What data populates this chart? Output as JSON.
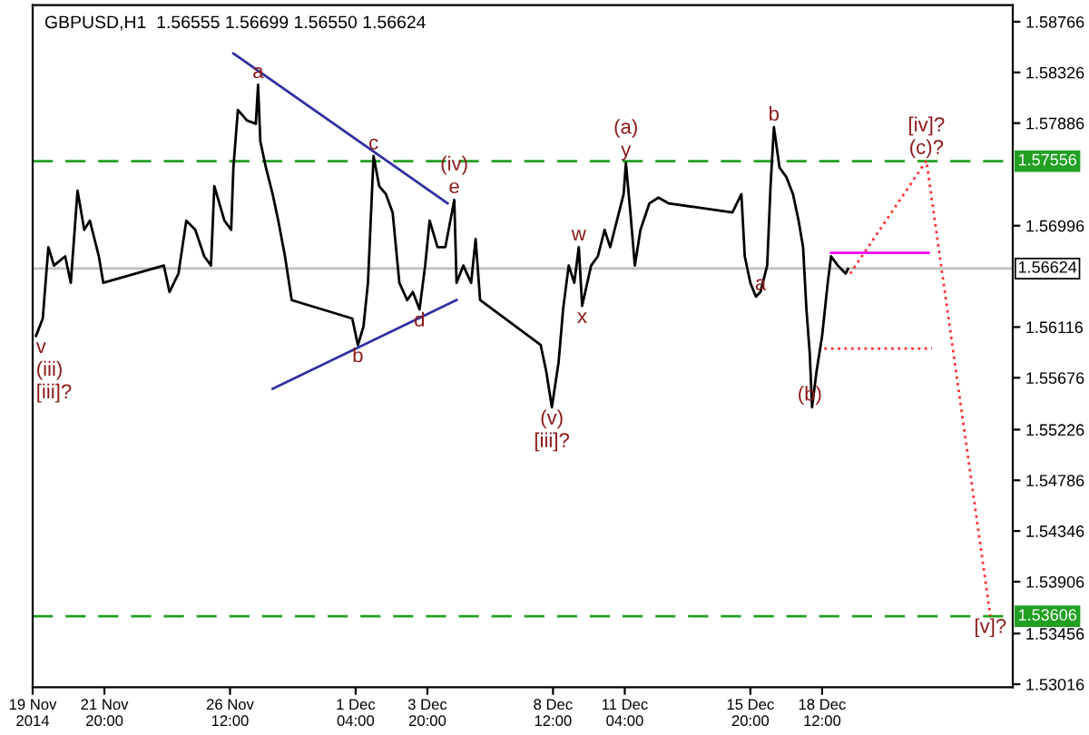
{
  "chart_data": {
    "type": "line",
    "title": "GBPUSD,H1  1.56555 1.56699 1.56550 1.56624",
    "xlim": [
      "2014-11-19T04:00",
      "2014-12-25T14:00"
    ],
    "ylim": [
      1.5299,
      1.5891
    ],
    "xticks": [
      {
        "value": "2014-11-19T04:00",
        "label": "19 Nov 2014"
      },
      {
        "value": "2014-11-21T20:00",
        "label": "21 Nov 20:00"
      },
      {
        "value": "2014-11-26T12:00",
        "label": "26 Nov 12:00"
      },
      {
        "value": "2014-12-01T04:00",
        "label": "1 Dec 04:00"
      },
      {
        "value": "2014-12-03T20:00",
        "label": "3 Dec 20:00"
      },
      {
        "value": "2014-12-08T12:00",
        "label": "8 Dec 12:00"
      },
      {
        "value": "2014-12-11T04:00",
        "label": "11 Dec 04:00"
      },
      {
        "value": "2014-12-15T20:00",
        "label": "15 Dec 20:00"
      },
      {
        "value": "2014-12-18T12:00",
        "label": "18 Dec 12:00"
      }
    ],
    "yticks": [
      1.58766,
      1.58326,
      1.57886,
      1.56996,
      1.56116,
      1.55676,
      1.55226,
      1.54786,
      1.54346,
      1.53906,
      1.53456,
      1.53016
    ],
    "grid": false,
    "legend": false,
    "series": [
      {
        "color": "#000000",
        "line_style": "solid",
        "x": [
          "2014-11-19T07:00",
          "2014-11-19T13:00",
          "2014-11-19T18:00",
          "2014-11-19T23:00",
          "2014-11-20T09:00",
          "2014-11-20T14:00",
          "2014-11-20T20:00",
          "2014-11-21T02:00",
          "2014-11-21T07:00",
          "2014-11-21T15:00",
          "2014-11-21T19:00",
          "2014-11-24T01:00",
          "2014-11-24T06:00",
          "2014-11-24T14:00",
          "2014-11-24T21:00",
          "2014-11-25T05:00",
          "2014-11-25T13:00",
          "2014-11-25T19:00",
          "2014-11-25T22:00",
          "2014-11-26T07:00",
          "2014-11-26T13:00",
          "2014-11-26T15:00",
          "2014-11-26T19:00",
          "2014-11-27T03:00",
          "2014-11-27T11:00",
          "2014-11-27T13:00",
          "2014-11-27T15:00",
          "2014-11-27T20:00",
          "2014-11-28T02:00",
          "2014-11-28T07:00",
          "2014-11-28T13:00",
          "2014-11-28T19:00",
          "2014-12-01T01:00",
          "2014-12-01T06:00",
          "2014-12-01T11:00",
          "2014-12-01T15:00",
          "2014-12-01T20:00",
          "2014-12-02T01:00",
          "2014-12-02T07:00",
          "2014-12-02T13:00",
          "2014-12-02T19:00",
          "2014-12-03T02:00",
          "2014-12-03T07:00",
          "2014-12-03T13:00",
          "2014-12-03T18:00",
          "2014-12-03T22:00",
          "2014-12-04T05:00",
          "2014-12-04T12:00",
          "2014-12-04T20:00",
          "2014-12-04T22:00",
          "2014-12-05T04:00",
          "2014-12-05T11:00",
          "2014-12-05T15:00",
          "2014-12-05T19:00",
          "2014-12-08T01:00",
          "2014-12-08T06:00",
          "2014-12-08T11:00",
          "2014-12-08T17:00",
          "2014-12-08T21:00",
          "2014-12-09T02:00",
          "2014-12-09T07:00",
          "2014-12-09T11:00",
          "2014-12-09T14:00",
          "2014-12-09T22:00",
          "2014-12-10T04:00",
          "2014-12-10T10:00",
          "2014-12-10T15:00",
          "2014-12-10T21:00",
          "2014-12-11T03:00",
          "2014-12-11T05:00",
          "2014-12-11T09:00",
          "2014-12-11T13:00",
          "2014-12-11T18:00",
          "2014-12-12T02:00",
          "2014-12-12T10:00",
          "2014-12-12T19:00",
          "2014-12-15T04:00",
          "2014-12-15T12:00",
          "2014-12-15T15:00",
          "2014-12-15T20:00",
          "2014-12-16T01:00",
          "2014-12-16T05:00",
          "2014-12-16T11:00",
          "2014-12-16T14:00",
          "2014-12-16T17:00",
          "2014-12-16T22:00",
          "2014-12-17T04:00",
          "2014-12-17T10:00",
          "2014-12-17T15:00",
          "2014-12-17T19:00",
          "2014-12-17T22:00",
          "2014-12-18T01:00",
          "2014-12-18T03:00",
          "2014-12-18T07:00",
          "2014-12-18T12:00",
          "2014-12-18T17:00",
          "2014-12-18T20:00",
          "2014-12-19T02:00",
          "2014-12-19T09:00",
          "2014-12-19T11:00"
        ],
        "values": [
          1.5604,
          1.5619,
          1.5681,
          1.5665,
          1.5673,
          1.565,
          1.573,
          1.5696,
          1.5704,
          1.5673,
          1.565,
          1.5665,
          1.5642,
          1.5658,
          1.5704,
          1.5696,
          1.5673,
          1.5665,
          1.5734,
          1.5704,
          1.5696,
          1.575,
          1.58,
          1.5791,
          1.5788,
          1.5822,
          1.5773,
          1.575,
          1.5727,
          1.5704,
          1.5673,
          1.5635,
          1.5619,
          1.5596,
          1.5612,
          1.565,
          1.576,
          1.5734,
          1.5727,
          1.5711,
          1.565,
          1.5635,
          1.5642,
          1.5627,
          1.5665,
          1.5704,
          1.5681,
          1.5681,
          1.5722,
          1.565,
          1.5665,
          1.565,
          1.5688,
          1.5635,
          1.5596,
          1.5573,
          1.5542,
          1.5581,
          1.5627,
          1.5665,
          1.565,
          1.5681,
          1.563,
          1.5665,
          1.5673,
          1.5696,
          1.5681,
          1.5704,
          1.5727,
          1.5754,
          1.5711,
          1.5665,
          1.5696,
          1.5719,
          1.5724,
          1.5719,
          1.5711,
          1.5727,
          1.5673,
          1.565,
          1.5638,
          1.5642,
          1.5665,
          1.5734,
          1.5785,
          1.575,
          1.5742,
          1.5727,
          1.5704,
          1.5681,
          1.5627,
          1.5588,
          1.5542,
          1.5573,
          1.5604,
          1.565,
          1.5673,
          1.5665,
          1.5658,
          1.5662
        ]
      },
      {
        "color": "#ff3030",
        "line_style": "dotted",
        "x": [
          "2014-12-19T13:00",
          "2014-12-22T09:00",
          "2014-12-24T18:00"
        ],
        "values": [
          1.5658,
          1.5756,
          1.5361
        ]
      },
      {
        "color": "#ff00ff",
        "line_style": "solid",
        "x": [
          "2014-12-18T20:00",
          "2014-12-22T11:00"
        ],
        "values": [
          1.5676,
          1.5676
        ]
      },
      {
        "color": "#ff3030",
        "line_style": "dotted",
        "x": [
          "2014-12-18T14:00",
          "2014-12-22T14:00"
        ],
        "values": [
          1.5593,
          1.5593
        ]
      },
      {
        "color": "#3030a0",
        "line_style": "solid",
        "x": [
          "2014-11-26T15:00",
          "2014-12-04T14:00"
        ],
        "values": [
          1.5849,
          1.5719
        ]
      },
      {
        "color": "#3030a0",
        "line_style": "solid",
        "x": [
          "2014-11-28T02:00",
          "2014-12-04T22:00"
        ],
        "values": [
          1.5558,
          1.5635
        ]
      }
    ],
    "ref_lines": [
      {
        "axis": "y",
        "value": 1.56624,
        "label": "1.56624",
        "color": "#c0c0c0",
        "line_style": "solid"
      },
      {
        "axis": "y",
        "value": 1.57556,
        "label": "1.57556",
        "color": "#22a022",
        "line_style": "dashed"
      },
      {
        "axis": "y",
        "value": 1.53606,
        "label": "1.53606",
        "color": "#22a022",
        "line_style": "dashed"
      }
    ],
    "annotations": [
      {
        "text": "a",
        "x": "2014-11-27T13:00",
        "y": 1.5822
      },
      {
        "text": "c",
        "x": "2014-12-01T20:00",
        "y": 1.576
      },
      {
        "text": "(iv)",
        "x": "2014-12-04T20:00",
        "y": 1.5722
      },
      {
        "text": "e",
        "x": "2014-12-04T20:00",
        "y": 1.5722
      },
      {
        "text": "w",
        "x": "2014-12-09T11:00",
        "y": 1.5681
      },
      {
        "text": "v",
        "x": "2014-11-19T07:00",
        "y": 1.5604
      },
      {
        "text": "(iii)",
        "x": "2014-11-19T07:00",
        "y": 1.5604
      },
      {
        "text": "[iii]?",
        "x": "2014-11-19T07:00",
        "y": 1.5604
      },
      {
        "text": "b",
        "x": "2014-12-01T06:00",
        "y": 1.5596
      },
      {
        "text": "d",
        "x": "2014-12-03T13:00",
        "y": 1.5627
      },
      {
        "text": "(v)",
        "x": "2014-12-08T11:00",
        "y": 1.5542
      },
      {
        "text": "[iii]?",
        "x": "2014-12-08T11:00",
        "y": 1.5542
      },
      {
        "text": "x",
        "x": "2014-12-09T14:00",
        "y": 1.563
      },
      {
        "text": "(a)",
        "x": "2014-12-11T05:00",
        "y": 1.5754
      },
      {
        "text": "y",
        "x": "2014-12-11T05:00",
        "y": 1.5754
      },
      {
        "text": "b",
        "x": "2014-12-16T17:00",
        "y": 1.5785
      },
      {
        "text": "a",
        "x": "2014-12-16T05:00",
        "y": 1.5638
      },
      {
        "text": "(b)",
        "x": "2014-12-18T01:00",
        "y": 1.5542
      },
      {
        "text": "[iv]?",
        "x": "2014-12-22T09:00",
        "y": 1.5756
      },
      {
        "text": "(c)?",
        "x": "2014-12-22T09:00",
        "y": 1.5756
      },
      {
        "text": "[v]?",
        "x": "2014-12-24T18:00",
        "y": 1.5361
      }
    ]
  }
}
